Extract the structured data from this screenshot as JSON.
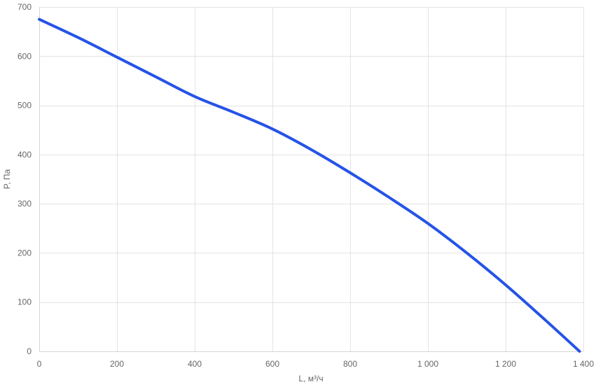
{
  "chart_data": {
    "type": "line",
    "xlabel": "L, м³/ч",
    "ylabel": "P, Па",
    "xlim": [
      0,
      1400
    ],
    "ylim": [
      0,
      700
    ],
    "x_ticks": [
      0,
      200,
      400,
      600,
      800,
      1000,
      1200,
      1400
    ],
    "x_tick_labels": [
      "0",
      "200",
      "400",
      "600",
      "800",
      "1 000",
      "1 200",
      "1 400"
    ],
    "y_ticks": [
      0,
      100,
      200,
      300,
      400,
      500,
      600,
      700
    ],
    "y_tick_labels": [
      "0",
      "100",
      "200",
      "300",
      "400",
      "500",
      "600",
      "700"
    ],
    "grid": true,
    "legend": "none",
    "series": [
      {
        "color": "#2553e8",
        "x": [
          0,
          100,
          200,
          300,
          400,
          500,
          600,
          700,
          800,
          900,
          1000,
          1100,
          1200,
          1300,
          1390
        ],
        "y": [
          675,
          638,
          598,
          558,
          518,
          486,
          452,
          410,
          363,
          313,
          260,
          200,
          135,
          65,
          0
        ]
      }
    ]
  }
}
